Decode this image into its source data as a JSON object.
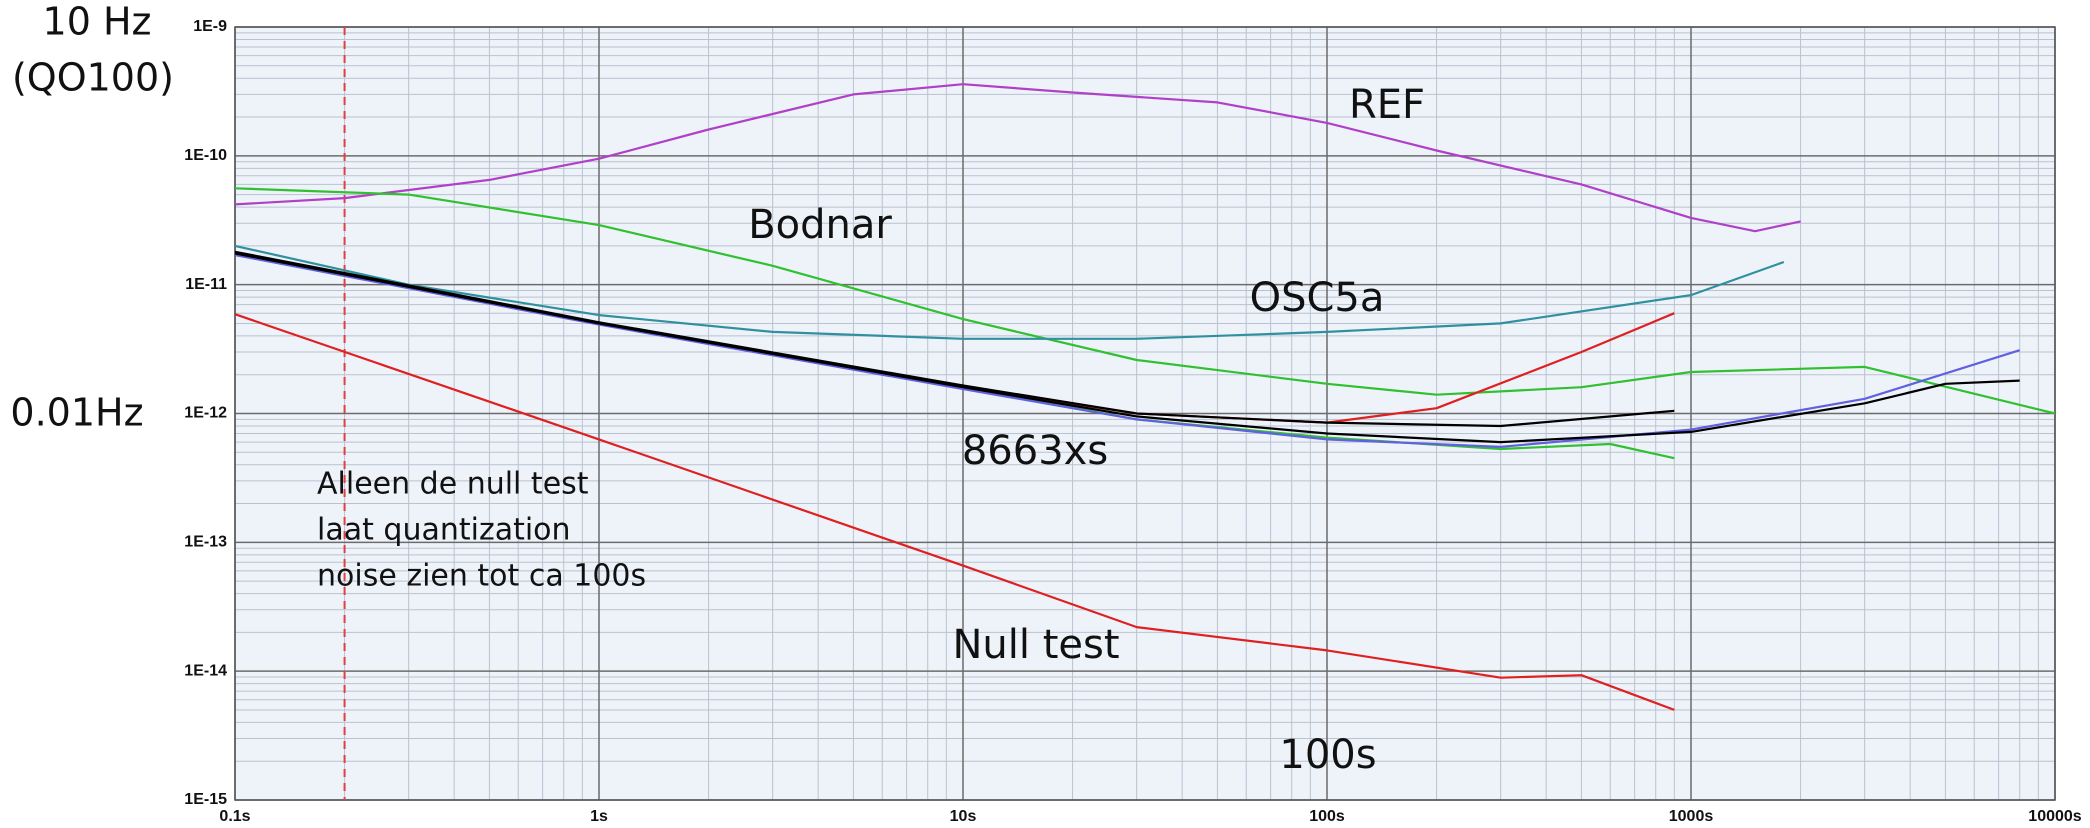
{
  "chart_data": {
    "type": "line",
    "xlog": true,
    "ylog": true,
    "grid": true,
    "minor_grid": true,
    "xlim": [
      0.1,
      10000
    ],
    "ylim": [
      1e-15,
      1e-09
    ],
    "xticks": [
      {
        "value": 0.1,
        "label": "0.1s"
      },
      {
        "value": 1,
        "label": "1s"
      },
      {
        "value": 10,
        "label": "10s"
      },
      {
        "value": 100,
        "label": "100s"
      },
      {
        "value": 1000,
        "label": "1000s"
      },
      {
        "value": 10000,
        "label": "10000s"
      }
    ],
    "yticks": [
      {
        "value": 1e-15,
        "label": "1E-15"
      },
      {
        "value": 1e-14,
        "label": "1E-14"
      },
      {
        "value": 1e-13,
        "label": "1E-13"
      },
      {
        "value": 1e-12,
        "label": "1E-12"
      },
      {
        "value": 1e-11,
        "label": "1E-11"
      },
      {
        "value": 1e-10,
        "label": "1E-10"
      },
      {
        "value": 1e-09,
        "label": "1E-9"
      }
    ],
    "marker_x": 0.2,
    "marker_color": "#e04040",
    "series": [
      {
        "color": "#b040c8",
        "x": [
          0.1,
          0.2,
          0.5,
          1,
          2,
          5,
          10,
          20,
          50,
          100,
          200,
          500,
          1000,
          1500,
          2000
        ],
        "values": [
          4.2e-11,
          4.7e-11,
          6.5e-11,
          9.5e-11,
          1.6e-10,
          3e-10,
          3.6e-10,
          3.1e-10,
          2.6e-10,
          1.8e-10,
          1.1e-10,
          6e-11,
          3.3e-11,
          2.6e-11,
          3.1e-11
        ]
      },
      {
        "color": "#30c030",
        "x": [
          0.1,
          0.3,
          1,
          3,
          10,
          30,
          100,
          200,
          500,
          1000,
          3000,
          10000
        ],
        "values": [
          5.6e-11,
          5e-11,
          2.9e-11,
          1.4e-11,
          5.4e-12,
          2.6e-12,
          1.7e-12,
          1.4e-12,
          1.6e-12,
          2.1e-12,
          2.3e-12,
          1e-12
        ]
      },
      {
        "color": "#3090a0",
        "x": [
          0.1,
          0.3,
          1,
          3,
          10,
          30,
          100,
          300,
          1000,
          1800
        ],
        "values": [
          2e-11,
          1e-11,
          5.8e-12,
          4.3e-12,
          3.8e-12,
          3.8e-12,
          4.3e-12,
          5e-12,
          8.3e-12,
          1.5e-11
        ]
      },
      {
        "color": "#e02020",
        "x": [
          0.1,
          1,
          10,
          30,
          100,
          200,
          500,
          900
        ],
        "values": [
          1.75e-11,
          5e-12,
          1.6e-12,
          1e-12,
          8.5e-13,
          1.1e-12,
          3e-12,
          6e-12
        ]
      },
      {
        "color": "#30c030",
        "x": [
          0.1,
          1,
          10,
          30,
          100,
          300,
          600,
          900
        ],
        "values": [
          1.75e-11,
          5e-12,
          1.6e-12,
          9e-13,
          6.5e-13,
          5.3e-13,
          5.8e-13,
          4.5e-13
        ]
      },
      {
        "color": "#6060e0",
        "x": [
          0.1,
          1,
          10,
          30,
          100,
          300,
          1000,
          3000,
          8000
        ],
        "values": [
          1.7e-11,
          4.9e-12,
          1.55e-12,
          9e-13,
          6.3e-13,
          5.5e-13,
          7.5e-13,
          1.3e-12,
          3.1e-12
        ]
      },
      {
        "color": "#000000",
        "x": [
          0.1,
          1,
          10,
          30,
          100,
          300,
          900
        ],
        "values": [
          1.8e-11,
          5.1e-12,
          1.65e-12,
          1e-12,
          8.5e-13,
          8e-13,
          1.05e-12
        ]
      },
      {
        "color": "#000000",
        "x": [
          0.1,
          1,
          10,
          30,
          100,
          300,
          1000,
          3000,
          5000,
          8000
        ],
        "values": [
          1.75e-11,
          5e-12,
          1.6e-12,
          9.5e-13,
          7e-13,
          6e-13,
          7.2e-13,
          1.2e-12,
          1.7e-12,
          1.8e-12
        ]
      },
      {
        "color": "#e02020",
        "x": [
          0.1,
          1,
          10,
          30,
          100,
          300,
          500,
          900
        ],
        "values": [
          5.9e-12,
          6.3e-13,
          6.6e-14,
          2.2e-14,
          1.45e-14,
          8.9e-15,
          9.3e-15,
          5e-15
        ]
      }
    ],
    "annotations": [
      "REF",
      "Bodnar",
      "OSC5a",
      "8663xs",
      "Null test",
      "100s"
    ],
    "note": [
      "Alleen de null test",
      "laat quantization",
      "noise zien tot ca 100s"
    ],
    "side_labels": [
      "10 Hz",
      "(QO100)",
      "0.01Hz"
    ]
  }
}
